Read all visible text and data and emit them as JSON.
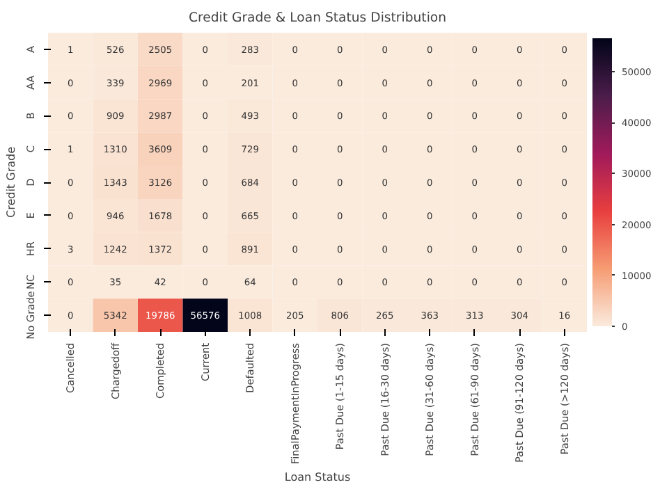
{
  "chart_data": {
    "type": "heatmap",
    "title": "Credit Grade & Loan Status Distribution",
    "xlabel": "Loan Status",
    "ylabel": "Credit Grade",
    "categories": [
      "Cancelled",
      "Chargedoff",
      "Completed",
      "Current",
      "Defaulted",
      "FinalPaymentInProgress",
      "Past Due (1-15 days)",
      "Past Due (16-30 days)",
      "Past Due (31-60 days)",
      "Past Due (61-90 days)",
      "Past Due (91-120 days)",
      "Past Due (>120 days)"
    ],
    "y_categories": [
      "A",
      "AA",
      "B",
      "C",
      "D",
      "E",
      "HR",
      "NC",
      "No Grade"
    ],
    "cells": [
      [
        1,
        526,
        2505,
        0,
        283,
        0,
        0,
        0,
        0,
        0,
        0,
        0
      ],
      [
        0,
        339,
        2969,
        0,
        201,
        0,
        0,
        0,
        0,
        0,
        0,
        0
      ],
      [
        0,
        909,
        2987,
        0,
        493,
        0,
        0,
        0,
        0,
        0,
        0,
        0
      ],
      [
        1,
        1310,
        3609,
        0,
        729,
        0,
        0,
        0,
        0,
        0,
        0,
        0
      ],
      [
        0,
        1343,
        3126,
        0,
        684,
        0,
        0,
        0,
        0,
        0,
        0,
        0
      ],
      [
        0,
        946,
        1678,
        0,
        665,
        0,
        0,
        0,
        0,
        0,
        0,
        0
      ],
      [
        3,
        1242,
        1372,
        0,
        891,
        0,
        0,
        0,
        0,
        0,
        0,
        0
      ],
      [
        0,
        35,
        42,
        0,
        64,
        0,
        0,
        0,
        0,
        0,
        0,
        0
      ],
      [
        0,
        5342,
        19786,
        56576,
        1008,
        205,
        806,
        265,
        363,
        313,
        304,
        16
      ]
    ],
    "clim": [
      0,
      56576
    ],
    "cticks": [
      0,
      10000,
      20000,
      30000,
      40000,
      50000
    ],
    "data_labels": true
  }
}
